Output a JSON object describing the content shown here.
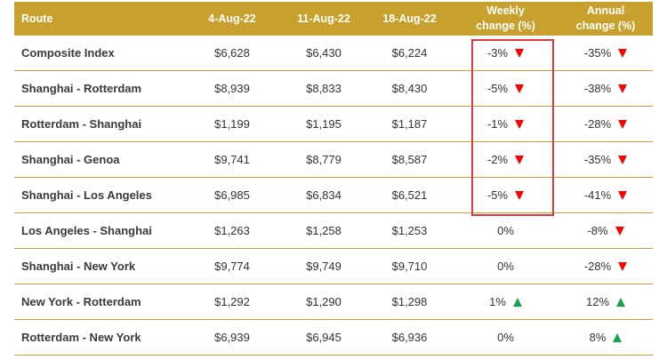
{
  "table": {
    "headers": {
      "route": "Route",
      "d1": "4-Aug-22",
      "d2": "11-Aug-22",
      "d3": "18-Aug-22",
      "weekly_l1": "Weekly",
      "weekly_l2": "change (%)",
      "annual_l1": "Annual",
      "annual_l2": "change (%)"
    },
    "rows": [
      {
        "route": "Composite Index",
        "d1": "$6,628",
        "d2": "$6,430",
        "d3": "$6,224",
        "weekly": "-3%",
        "weekly_dir": "down",
        "annual": "-35%",
        "annual_dir": "down"
      },
      {
        "route": "Shanghai - Rotterdam",
        "d1": "$8,939",
        "d2": "$8,833",
        "d3": "$8,430",
        "weekly": "-5%",
        "weekly_dir": "down",
        "annual": "-38%",
        "annual_dir": "down"
      },
      {
        "route": "Rotterdam - Shanghai",
        "d1": "$1,199",
        "d2": "$1,195",
        "d3": "$1,187",
        "weekly": "-1%",
        "weekly_dir": "down",
        "annual": "-28%",
        "annual_dir": "down"
      },
      {
        "route": "Shanghai - Genoa",
        "d1": "$9,741",
        "d2": "$8,779",
        "d3": "$8,587",
        "weekly": "-2%",
        "weekly_dir": "down",
        "annual": "-35%",
        "annual_dir": "down"
      },
      {
        "route": "Shanghai - Los Angeles",
        "d1": "$6,985",
        "d2": "$6,834",
        "d3": "$6,521",
        "weekly": "-5%",
        "weekly_dir": "down",
        "annual": "-41%",
        "annual_dir": "down"
      },
      {
        "route": "Los Angeles - Shanghai",
        "d1": "$1,263",
        "d2": "$1,258",
        "d3": "$1,253",
        "weekly": "0%",
        "weekly_dir": "",
        "annual": "-8%",
        "annual_dir": "down"
      },
      {
        "route": "Shanghai - New York",
        "d1": "$9,774",
        "d2": "$9,749",
        "d3": "$9,710",
        "weekly": "0%",
        "weekly_dir": "",
        "annual": "-28%",
        "annual_dir": "down"
      },
      {
        "route": "New York - Rotterdam",
        "d1": "$1,292",
        "d2": "$1,290",
        "d3": "$1,298",
        "weekly": "1%",
        "weekly_dir": "up",
        "annual": "12%",
        "annual_dir": "up"
      },
      {
        "route": "Rotterdam - New York",
        "d1": "$6,939",
        "d2": "$6,945",
        "d3": "$6,936",
        "weekly": "0%",
        "weekly_dir": "",
        "annual": "8%",
        "annual_dir": "up"
      }
    ]
  },
  "colors": {
    "header_bg": "#c8a02e",
    "row_border": "#c8a02e",
    "down_arrow": "#ff0000",
    "up_arrow": "#19a04b",
    "highlight_box": "#e03a3a"
  }
}
